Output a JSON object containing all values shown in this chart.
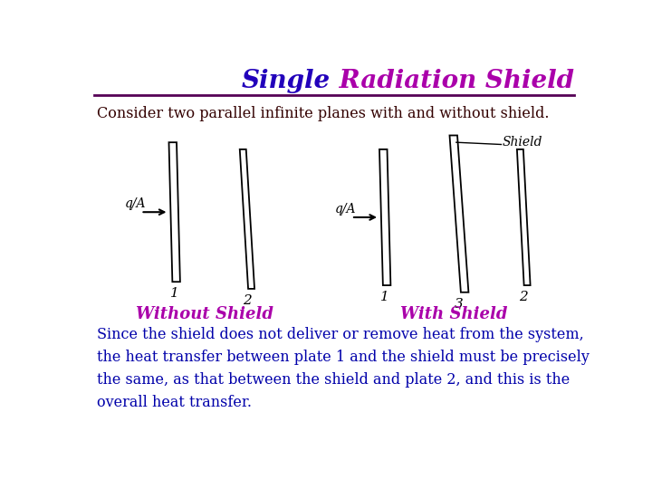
{
  "title_single": "Single",
  "title_rest": " Radiation Shield",
  "title_single_color": "#2200BB",
  "title_rest_color": "#AA00AA",
  "title_fontsize": 20,
  "title_fontweight": "bold",
  "subtitle": "Consider two parallel infinite planes with and without shield.",
  "subtitle_color": "#330000",
  "subtitle_fontsize": 11.5,
  "line_color": "#550055",
  "without_shield_label": "Without Shield",
  "with_shield_label": "With Shield",
  "label_color": "#AA00AA",
  "label_fontsize": 13,
  "body_text": "Since the shield does not deliver or remove heat from the system,\nthe heat transfer between plate 1 and the shield must be precisely\nthe same, as that between the shield and plate 2, and this is the\noverall heat transfer.",
  "body_color": "#0000AA",
  "body_fontsize": 11.5,
  "background_color": "#FFFFFF"
}
